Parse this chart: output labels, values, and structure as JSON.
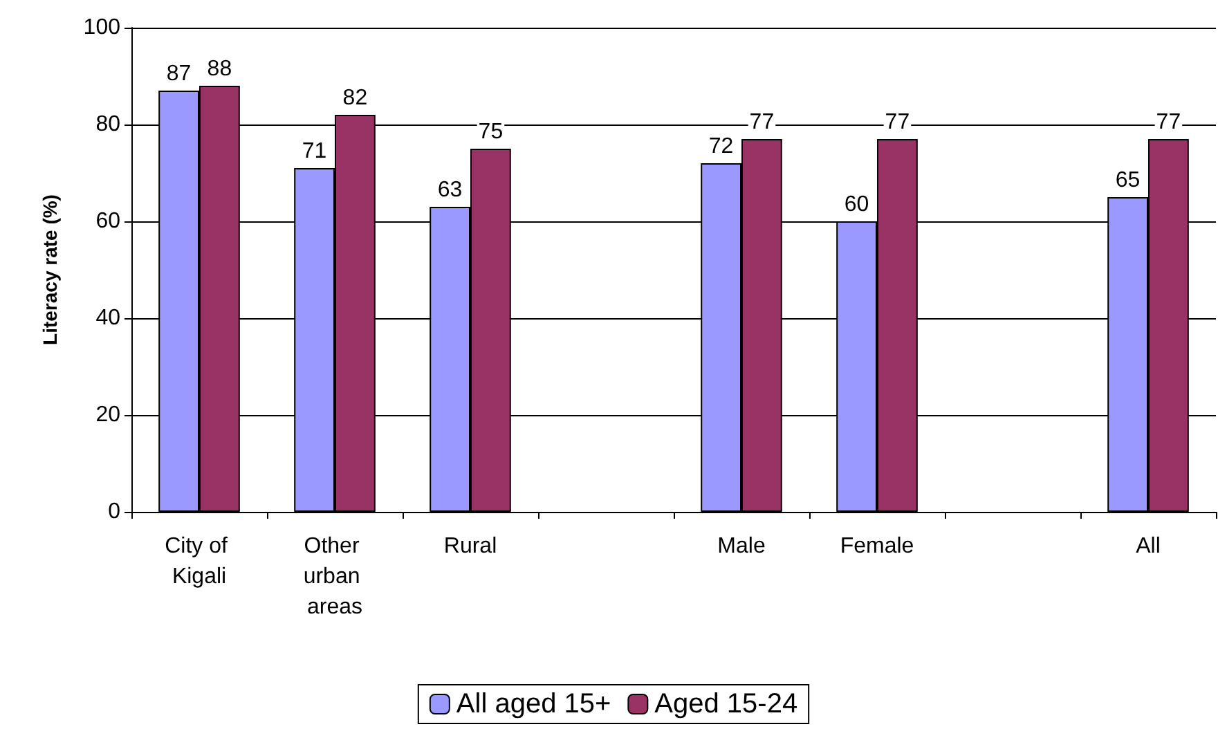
{
  "chart_data": {
    "type": "bar",
    "ylabel": "Literacy rate (%)",
    "categories": [
      "City of Kigali",
      "Other urban areas",
      "Rural",
      null,
      "Male",
      "Female",
      null,
      "All"
    ],
    "series": [
      {
        "name": "All aged 15+",
        "color": "#9999ff",
        "values": [
          87,
          71,
          63,
          null,
          72,
          60,
          null,
          65
        ]
      },
      {
        "name": "Aged 15-24",
        "color": "#993366",
        "values": [
          88,
          82,
          75,
          null,
          77,
          77,
          null,
          77
        ]
      }
    ],
    "ylim": [
      0,
      100
    ],
    "yticks": [
      0,
      20,
      40,
      60,
      80,
      100
    ],
    "grid": "y",
    "legend": "bottom",
    "data_labels": true
  }
}
